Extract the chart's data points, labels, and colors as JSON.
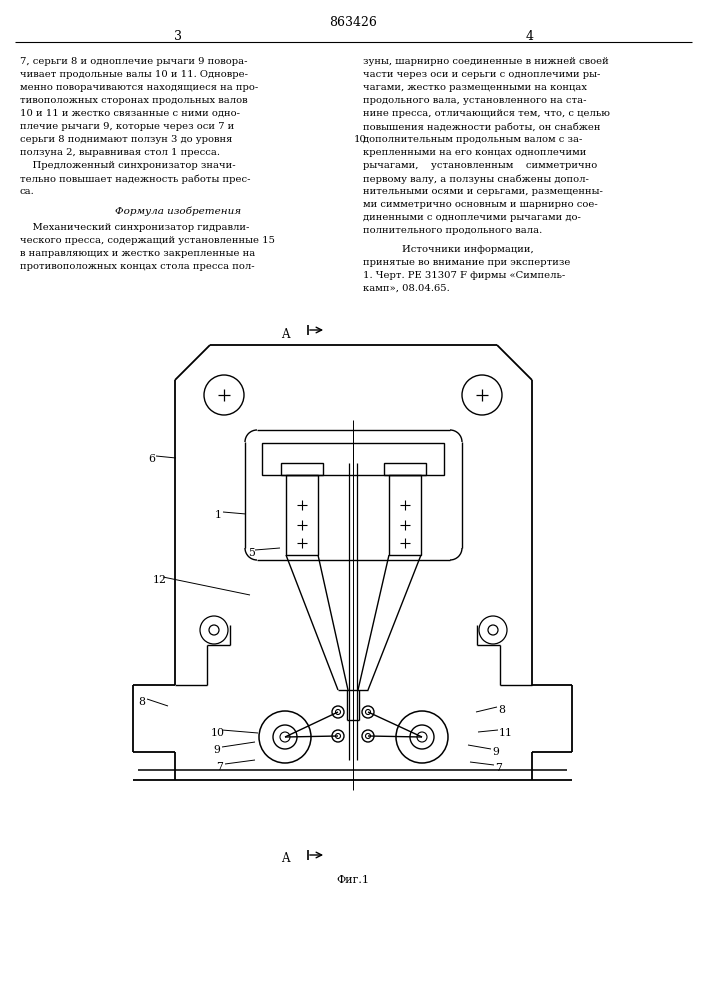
{
  "bg_color": "#ffffff",
  "patent_number": "863426",
  "page_left": "3",
  "page_right": "4",
  "left_col_lines": [
    "7, серьги 8 и одноплечие рычаги 9 поворa-",
    "чивает продольные валы 10 и 11. Одновре-",
    "менно поворачиваются находящиеся на про-",
    "тивоположных сторонах продольных валов",
    "10 и 11 и жестко связанные с ними одно-",
    "плечие рычаги 9, которые через оси 7 и",
    "серьги 8 поднимают ползун 3 до уровня",
    "ползуна 2, выравнивая стол 1 пресса.",
    "    Предложенный синхронизатор значи-",
    "тельно повышает надежность работы прес-",
    "са."
  ],
  "right_col_lines": [
    "зуны, шарнирно соединенные в нижней своей",
    "части через оси и серьги с одноплечими ры-",
    "чагами, жестко размещенными на концах",
    "продольного вала, установленного на ста-",
    "нине пресса, отличающийся тем, что, с целью",
    "повышения надежности работы, он снабжен",
    "дополнительным продольным валом с за-",
    "крепленными на его концах одноплечими",
    "рычагами,    установленным    симметрично",
    "первому валу, а ползуны снабжены допол-",
    "нительными осями и серьгами, размещенны-"
  ],
  "right_col2_lines": [
    "ми симметрично основным и шарнирно сое-",
    "диненными с одноплечими рычагами до-",
    "полнительного продольного вала."
  ],
  "formula_head": "Формула изобретения",
  "formula_lines": [
    "    Механический синхронизатор гидравли-",
    "ческого пресса, содержащий установленные 15",
    "в направляющих и жестко закрепленные на",
    "противоположных концах стола пресса пол-"
  ],
  "sources_head": "Источники информации,",
  "sources_lines": [
    "принятые во внимание при экспертизе",
    "1. Черт. РЕ 31307 F фирмы «Симпель-",
    "камп», 08.04.65."
  ],
  "fig_caption": "Фиг.1",
  "label_6": "6",
  "label_1": "1",
  "label_12": "12",
  "label_5": "5",
  "label_8L": "8",
  "label_8R": "8",
  "label_10": "10",
  "label_9L": "9",
  "label_9R": "9",
  "label_7L": "7",
  "label_7R": "7",
  "label_11": "11",
  "label_A": "A",
  "label_fig": "Фиг.1"
}
